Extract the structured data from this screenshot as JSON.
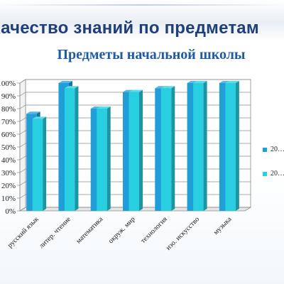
{
  "slide_title": "Качество знаний по предметам",
  "chart_title": "Предметы начальной школы",
  "chart_data": {
    "type": "bar",
    "style": "3d-clustered-column",
    "title": "Предметы начальной школы",
    "categories": [
      "русский язык",
      "литер. чтение",
      "математика",
      "окруж. мир",
      "технология",
      "изо. искусство",
      "музыка"
    ],
    "series": [
      {
        "name": "20…",
        "color": "#1f9ed8",
        "values": [
          76,
          100,
          80,
          93,
          96,
          100,
          100
        ]
      },
      {
        "name": "20…",
        "color": "#27cfe0",
        "values": [
          72,
          96,
          80,
          93,
          96,
          100,
          100
        ]
      }
    ],
    "ylim": [
      0,
      100
    ],
    "ytick_step": 10,
    "ytick_labels": [
      "0%",
      "10%",
      "20%",
      "30%",
      "40%",
      "50%",
      "60%",
      "70%",
      "80%",
      "90%",
      "100%"
    ],
    "grid": true,
    "legend_position": "right",
    "xlabel": "",
    "ylabel": ""
  }
}
